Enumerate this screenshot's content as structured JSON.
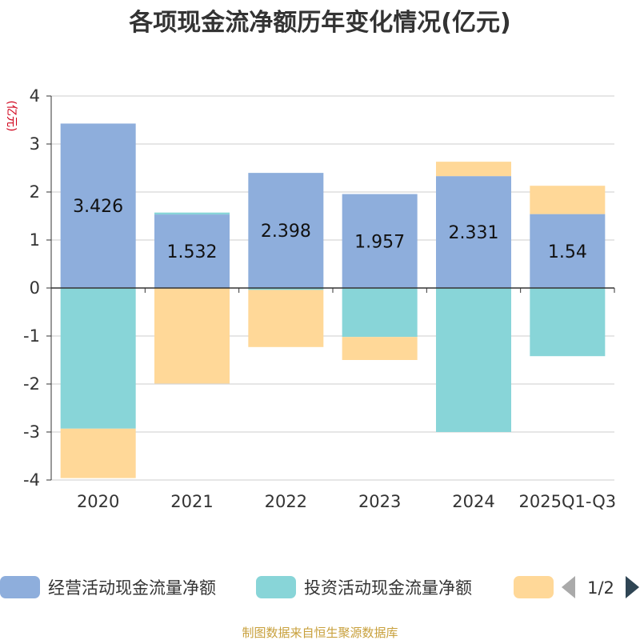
{
  "chart_data": {
    "type": "bar",
    "stacked": true,
    "title": "各项现金流净额历年变化情况(亿元)",
    "ylabel": "(亿元)",
    "xlabel": "",
    "ylim": [
      -4,
      4
    ],
    "yticks": [
      4,
      3,
      2,
      1,
      0,
      -1,
      -2,
      -3,
      -4
    ],
    "categories": [
      "2020",
      "2021",
      "2022",
      "2023",
      "2024",
      "2025Q1-Q3"
    ],
    "series": [
      {
        "name": "经营活动现金流量净额",
        "color": "#8eaedc",
        "values": [
          3.426,
          1.532,
          2.398,
          1.957,
          2.331,
          1.54
        ],
        "labels": [
          "3.426",
          "1.532",
          "2.398",
          "1.957",
          "2.331",
          "1.54"
        ]
      },
      {
        "name": "投资活动现金流量净额",
        "color": "#88d5d8",
        "values": [
          -2.93,
          0.04,
          -0.04,
          -1.02,
          -3.0,
          -1.42
        ]
      },
      {
        "name": "",
        "color": "#ffd898",
        "values": [
          -1.03,
          -1.99,
          -1.19,
          -0.48,
          0.3,
          0.59
        ]
      }
    ],
    "legend": {
      "position": "bottom",
      "page": "1/2"
    },
    "source": "制图数据来自恒生聚源数据库"
  }
}
